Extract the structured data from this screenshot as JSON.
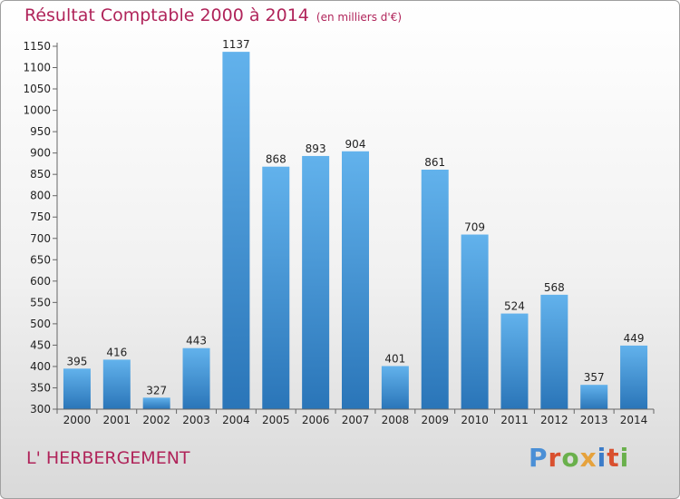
{
  "title": "Résultat Comptable 2000 à 2014",
  "subtitle": "(en milliers d'€)",
  "commune": "L' HERBERGEMENT",
  "logo": {
    "text": "Proxiti",
    "colors": [
      "#4a8fd6",
      "#d9502f",
      "#6ab04c",
      "#e6a23c",
      "#3b7cc9",
      "#d9502f",
      "#6ab04c"
    ]
  },
  "colors": {
    "bar_top": "#62b2ec",
    "bar_bottom": "#2a75b8",
    "title": "#b0245a"
  },
  "chart_data": {
    "type": "bar",
    "categories": [
      "2000",
      "2001",
      "2002",
      "2003",
      "2004",
      "2005",
      "2006",
      "2007",
      "2008",
      "2009",
      "2010",
      "2011",
      "2012",
      "2013",
      "2014"
    ],
    "values": [
      395,
      416,
      327,
      443,
      1137,
      868,
      893,
      904,
      401,
      861,
      709,
      524,
      568,
      357,
      449
    ],
    "title": "Résultat Comptable 2000 à 2014",
    "xlabel": "",
    "ylabel": "",
    "ylim": [
      300,
      1150
    ],
    "yticks": [
      300,
      350,
      400,
      450,
      500,
      550,
      600,
      650,
      700,
      750,
      800,
      850,
      900,
      950,
      1000,
      1050,
      1100,
      1150
    ],
    "grid": false
  }
}
